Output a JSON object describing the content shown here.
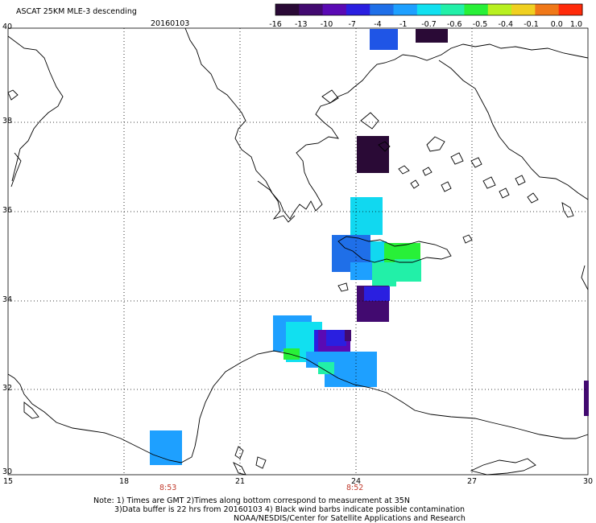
{
  "header": {
    "title": "ASCAT 25KM MLE-3 descending",
    "date": "20160103"
  },
  "colorbar": {
    "labels": [
      "-16",
      "-13",
      "-10",
      "-7",
      "-4",
      "-1",
      "-0.7",
      "-0.6",
      "-0.5",
      "-0.4",
      "-0.1",
      "0.0",
      "1.0"
    ],
    "colors": [
      "#2a0a36",
      "#420a70",
      "#5a0ab4",
      "#2a1fe0",
      "#1f6fe8",
      "#1ea0ff",
      "#11e0f0",
      "#22f0a8",
      "#28f038",
      "#b8f020",
      "#f0d020",
      "#f07818",
      "#ff2a0a"
    ]
  },
  "axes": {
    "lat_labels": [
      "40",
      "38",
      "36",
      "34",
      "32",
      "30"
    ],
    "lon_labels": [
      "15",
      "18",
      "21",
      "24",
      "27",
      "30"
    ]
  },
  "time_labels": [
    "8:53",
    "8:52"
  ],
  "notes": [
    "Note: 1) Times are GMT 2)Times along bottom correspond to measurement at 35N",
    "3)Data buffer is 22 hrs from 20160103 4) Black wind barbs indicate possible contamination",
    "NOAA/NESDIS/Center for Satellite Applications and Research"
  ]
}
